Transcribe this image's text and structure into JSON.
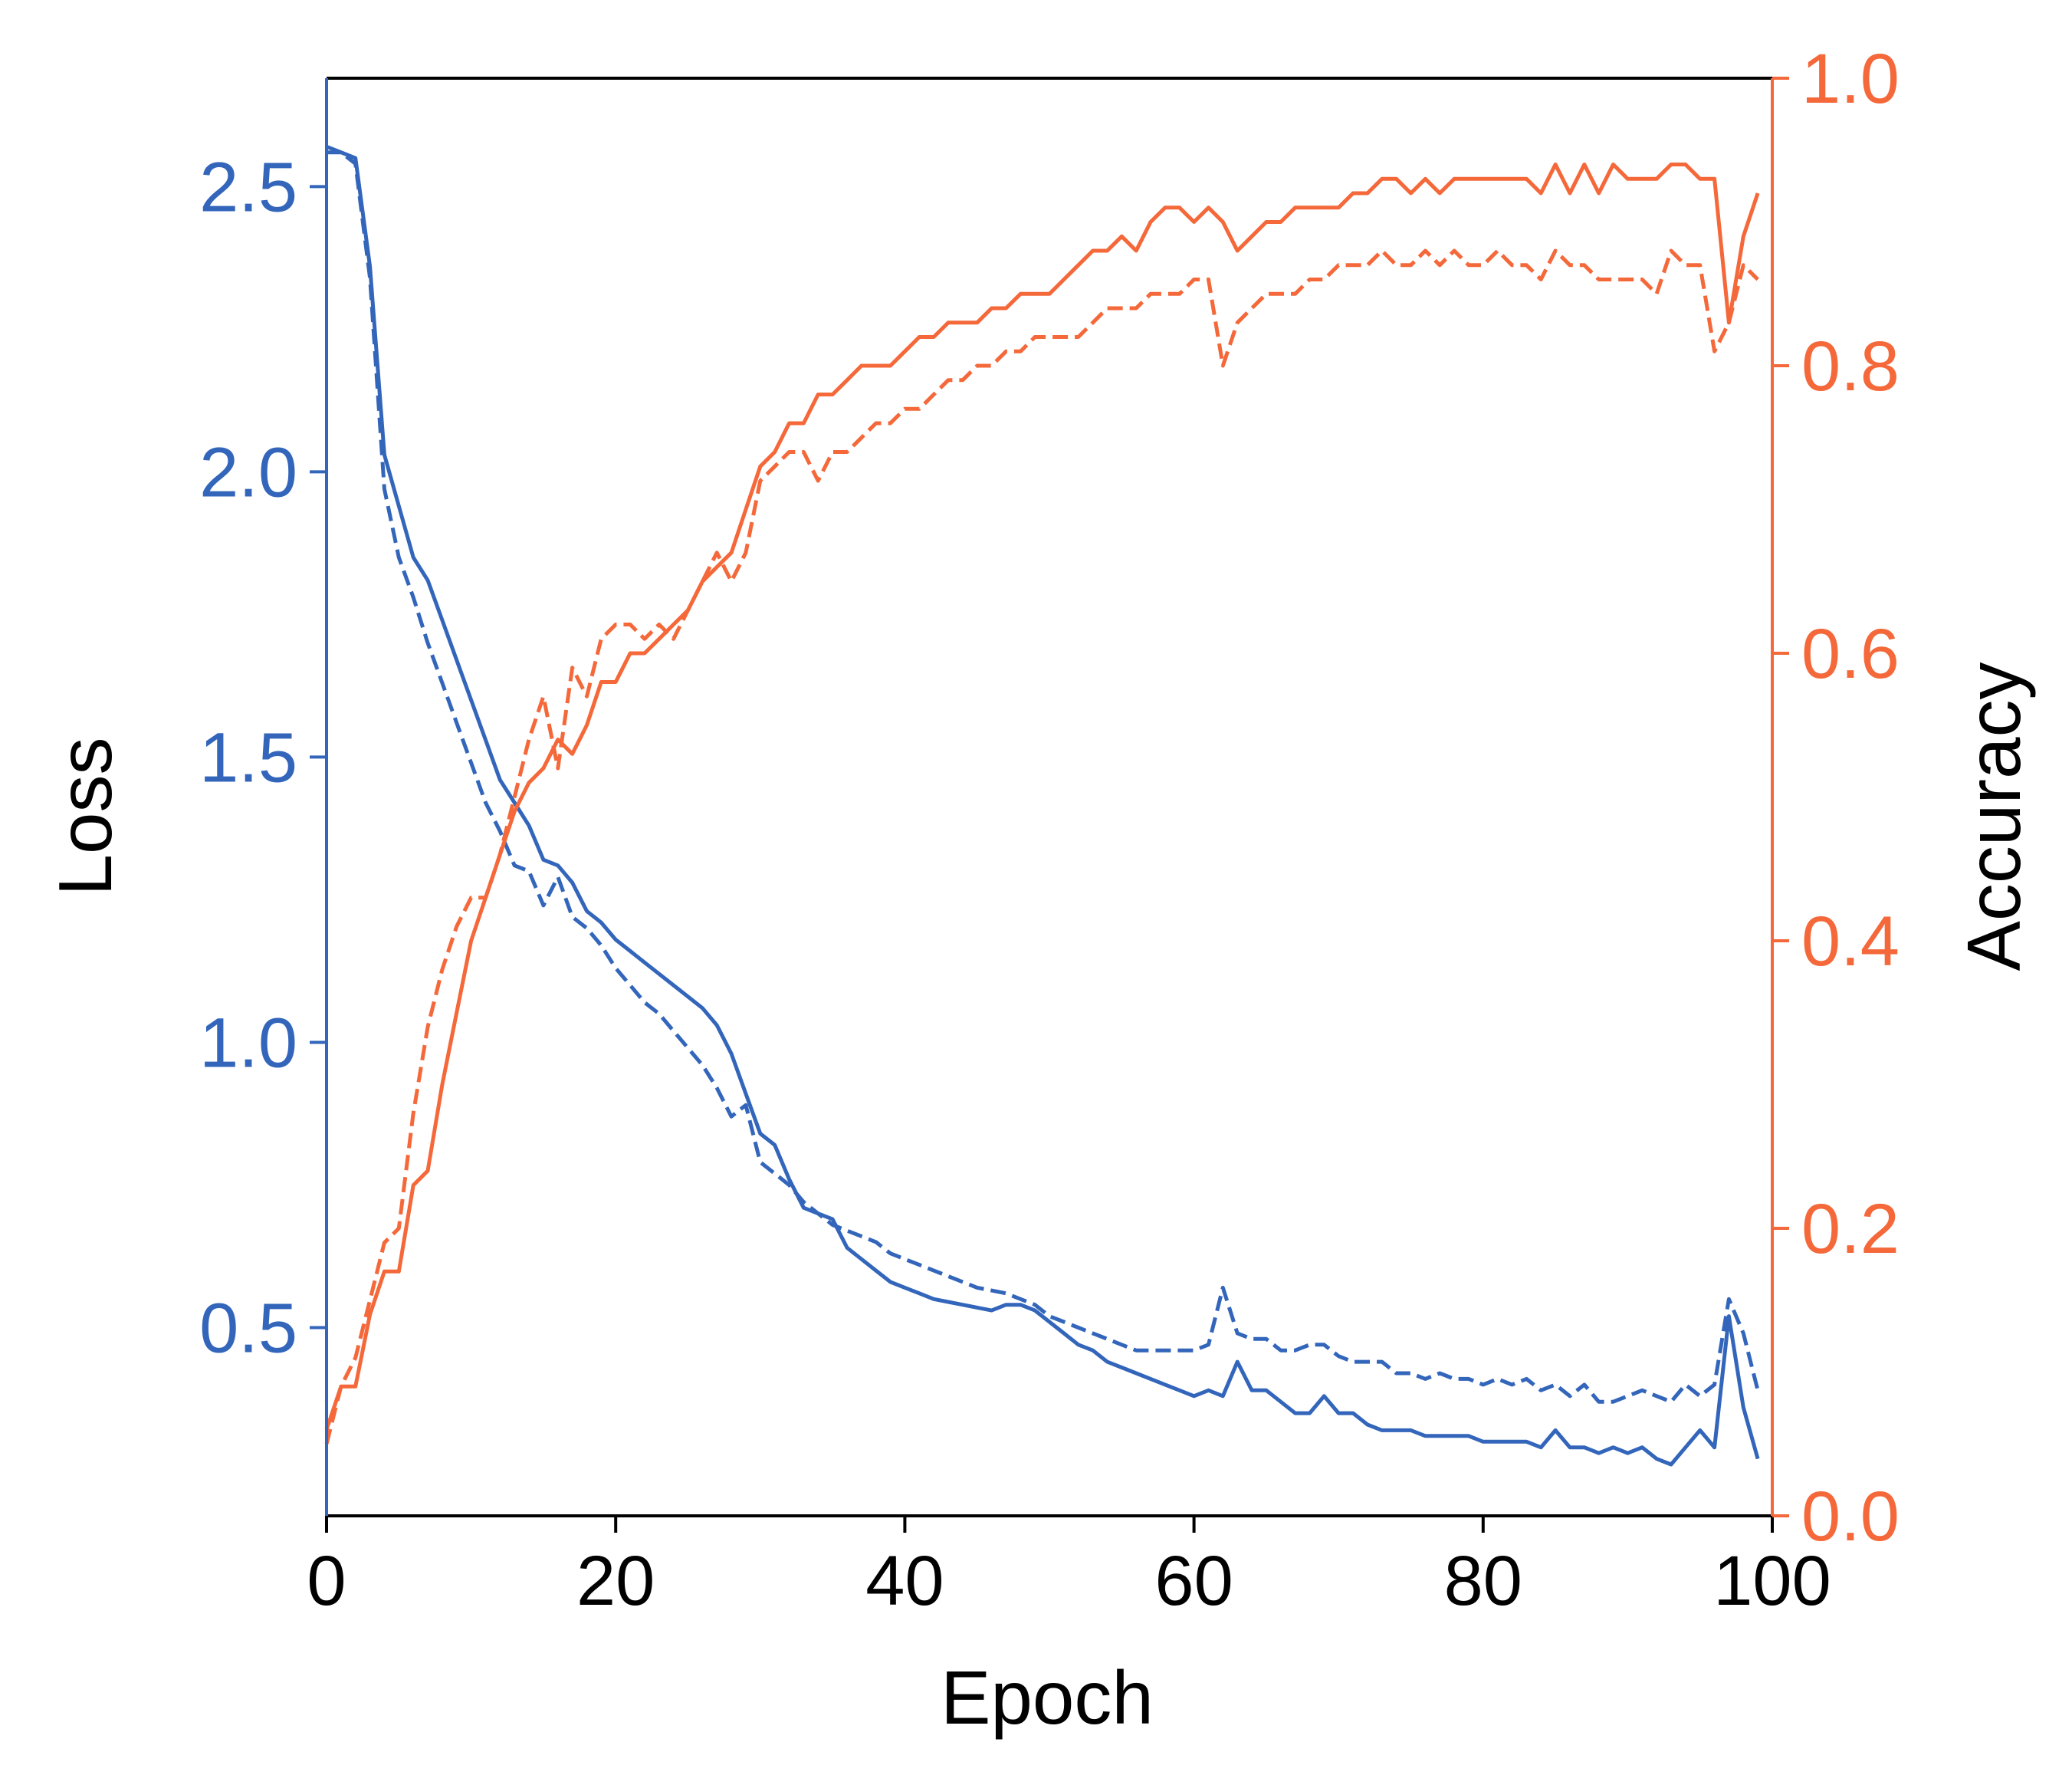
{
  "chart_data": {
    "type": "line",
    "xlabel": "Epoch",
    "ylabel_left": "Loss",
    "ylabel_right": "Accuracy",
    "xlim": [
      0,
      100
    ],
    "ylim_left": [
      0.17,
      2.69
    ],
    "ylim_right": [
      0,
      1
    ],
    "xticks": [
      0,
      20,
      40,
      60,
      80,
      100
    ],
    "xtick_labels": [
      "0",
      "20",
      "40",
      "60",
      "80",
      "100"
    ],
    "yticks_left": [
      0.5,
      1.0,
      1.5,
      2.0,
      2.5
    ],
    "ytick_labels_left": [
      "0.5",
      "1.0",
      "1.5",
      "2.0",
      "2.5"
    ],
    "yticks_right": [
      0.0,
      0.2,
      0.4,
      0.6,
      0.8,
      1.0
    ],
    "ytick_labels_right": [
      "0.0",
      "0.2",
      "0.4",
      "0.6",
      "0.8",
      "1.0"
    ],
    "grid": false,
    "legend": "none",
    "colors": {
      "loss": "#3366bb",
      "accuracy": "#f4683a",
      "frame": "#000000"
    },
    "x": [
      0,
      1,
      2,
      3,
      4,
      5,
      6,
      7,
      8,
      9,
      10,
      11,
      12,
      13,
      14,
      15,
      16,
      17,
      18,
      19,
      20,
      21,
      22,
      23,
      24,
      25,
      26,
      27,
      28,
      29,
      30,
      31,
      32,
      33,
      34,
      35,
      36,
      37,
      38,
      39,
      40,
      41,
      42,
      43,
      44,
      45,
      46,
      47,
      48,
      49,
      50,
      51,
      52,
      53,
      54,
      55,
      56,
      57,
      58,
      59,
      60,
      61,
      62,
      63,
      64,
      65,
      66,
      67,
      68,
      69,
      70,
      71,
      72,
      73,
      74,
      75,
      76,
      77,
      78,
      79,
      80,
      81,
      82,
      83,
      84,
      85,
      86,
      87,
      88,
      89,
      90,
      91,
      92,
      93,
      94,
      95,
      96,
      97,
      98,
      99
    ],
    "series": [
      {
        "axis": "left",
        "style": "solid",
        "color": "#3366bb",
        "values": [
          2.56,
          2.56,
          2.55,
          2.36,
          2.03,
          1.94,
          1.85,
          1.81,
          1.74,
          1.67,
          1.6,
          1.53,
          1.46,
          1.42,
          1.38,
          1.32,
          1.31,
          1.28,
          1.23,
          1.21,
          1.18,
          1.16,
          1.14,
          1.12,
          1.1,
          1.08,
          1.06,
          1.03,
          0.98,
          0.91,
          0.84,
          0.82,
          0.76,
          0.71,
          0.7,
          0.69,
          0.64,
          0.62,
          0.6,
          0.58,
          0.57,
          0.56,
          0.55,
          0.545,
          0.54,
          0.535,
          0.53,
          0.54,
          0.54,
          0.53,
          0.51,
          0.49,
          0.47,
          0.46,
          0.44,
          0.43,
          0.42,
          0.41,
          0.4,
          0.39,
          0.38,
          0.39,
          0.38,
          0.44,
          0.39,
          0.39,
          0.37,
          0.35,
          0.35,
          0.38,
          0.35,
          0.35,
          0.33,
          0.32,
          0.32,
          0.32,
          0.31,
          0.31,
          0.31,
          0.31,
          0.3,
          0.3,
          0.3,
          0.3,
          0.29,
          0.32,
          0.29,
          0.29,
          0.28,
          0.29,
          0.28,
          0.29,
          0.27,
          0.26,
          0.29,
          0.32,
          0.29,
          0.52,
          0.36,
          0.27
        ]
      },
      {
        "axis": "left",
        "style": "dashed",
        "color": "#3366bb",
        "values": [
          2.57,
          2.56,
          2.54,
          2.34,
          1.97,
          1.85,
          1.78,
          1.7,
          1.63,
          1.56,
          1.49,
          1.42,
          1.37,
          1.31,
          1.3,
          1.24,
          1.29,
          1.22,
          1.2,
          1.17,
          1.13,
          1.1,
          1.07,
          1.05,
          1.02,
          0.99,
          0.96,
          0.92,
          0.87,
          0.89,
          0.79,
          0.77,
          0.75,
          0.72,
          0.7,
          0.68,
          0.67,
          0.66,
          0.65,
          0.63,
          0.62,
          0.61,
          0.6,
          0.59,
          0.58,
          0.57,
          0.565,
          0.56,
          0.55,
          0.54,
          0.52,
          0.51,
          0.5,
          0.49,
          0.48,
          0.47,
          0.46,
          0.46,
          0.46,
          0.46,
          0.46,
          0.47,
          0.57,
          0.49,
          0.48,
          0.48,
          0.46,
          0.46,
          0.47,
          0.47,
          0.45,
          0.44,
          0.44,
          0.44,
          0.42,
          0.42,
          0.41,
          0.42,
          0.41,
          0.41,
          0.4,
          0.41,
          0.4,
          0.41,
          0.39,
          0.4,
          0.38,
          0.4,
          0.37,
          0.37,
          0.38,
          0.39,
          0.38,
          0.37,
          0.4,
          0.38,
          0.4,
          0.55,
          0.49,
          0.39
        ]
      },
      {
        "axis": "right",
        "style": "solid",
        "color": "#f4683a",
        "values": [
          0.06,
          0.09,
          0.09,
          0.14,
          0.17,
          0.17,
          0.23,
          0.24,
          0.3,
          0.35,
          0.4,
          0.43,
          0.46,
          0.49,
          0.51,
          0.52,
          0.54,
          0.53,
          0.55,
          0.58,
          0.58,
          0.6,
          0.6,
          0.61,
          0.62,
          0.63,
          0.65,
          0.66,
          0.67,
          0.7,
          0.73,
          0.74,
          0.76,
          0.76,
          0.78,
          0.78,
          0.79,
          0.8,
          0.8,
          0.8,
          0.81,
          0.82,
          0.82,
          0.83,
          0.83,
          0.83,
          0.84,
          0.84,
          0.85,
          0.85,
          0.85,
          0.86,
          0.87,
          0.88,
          0.88,
          0.89,
          0.88,
          0.9,
          0.91,
          0.91,
          0.9,
          0.91,
          0.9,
          0.88,
          0.89,
          0.9,
          0.9,
          0.91,
          0.91,
          0.91,
          0.91,
          0.92,
          0.92,
          0.93,
          0.93,
          0.92,
          0.93,
          0.92,
          0.93,
          0.93,
          0.93,
          0.93,
          0.93,
          0.93,
          0.92,
          0.94,
          0.92,
          0.94,
          0.92,
          0.94,
          0.93,
          0.93,
          0.93,
          0.94,
          0.94,
          0.93,
          0.93,
          0.83,
          0.89,
          0.92
        ]
      },
      {
        "axis": "right",
        "style": "dashed",
        "color": "#f4683a",
        "values": [
          0.05,
          0.09,
          0.11,
          0.15,
          0.19,
          0.2,
          0.28,
          0.34,
          0.38,
          0.41,
          0.43,
          0.43,
          0.46,
          0.5,
          0.54,
          0.57,
          0.52,
          0.59,
          0.57,
          0.61,
          0.62,
          0.62,
          0.61,
          0.62,
          0.61,
          0.63,
          0.65,
          0.67,
          0.65,
          0.67,
          0.72,
          0.73,
          0.74,
          0.74,
          0.72,
          0.74,
          0.74,
          0.75,
          0.76,
          0.76,
          0.77,
          0.77,
          0.78,
          0.79,
          0.79,
          0.8,
          0.8,
          0.81,
          0.81,
          0.82,
          0.82,
          0.82,
          0.82,
          0.83,
          0.84,
          0.84,
          0.84,
          0.85,
          0.85,
          0.85,
          0.86,
          0.86,
          0.8,
          0.83,
          0.84,
          0.85,
          0.85,
          0.85,
          0.86,
          0.86,
          0.87,
          0.87,
          0.87,
          0.88,
          0.87,
          0.87,
          0.88,
          0.87,
          0.88,
          0.87,
          0.87,
          0.88,
          0.87,
          0.87,
          0.86,
          0.88,
          0.87,
          0.87,
          0.86,
          0.86,
          0.86,
          0.86,
          0.85,
          0.88,
          0.87,
          0.87,
          0.81,
          0.83,
          0.87,
          0.86
        ]
      }
    ]
  }
}
